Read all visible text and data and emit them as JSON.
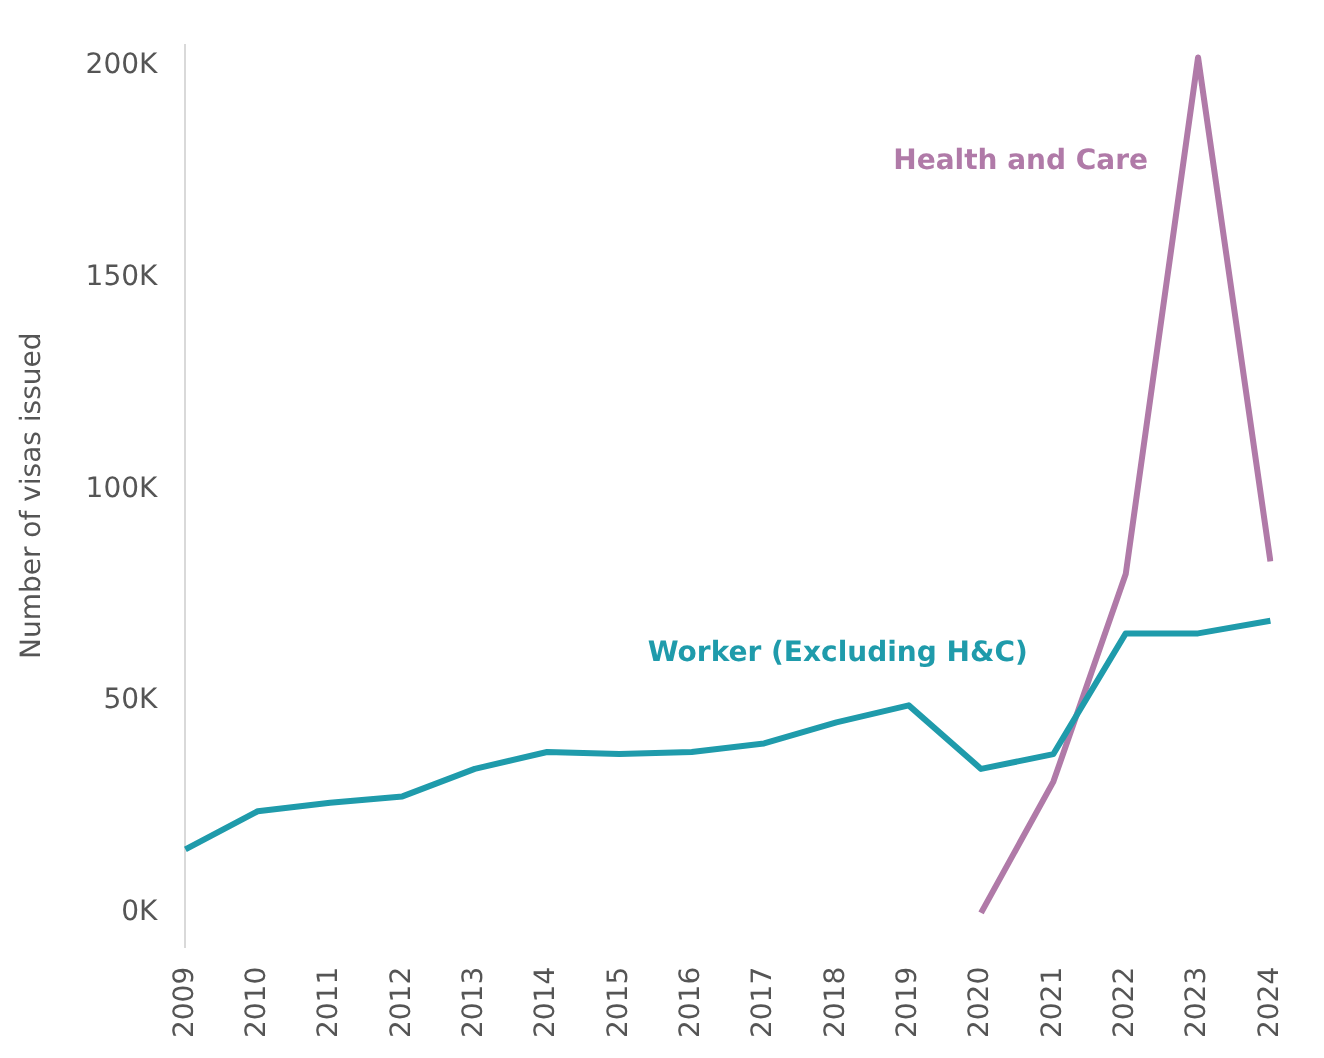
{
  "chart_data": {
    "type": "line",
    "ylabel": "Number of visas issued",
    "categories": [
      "2009",
      "2010",
      "2011",
      "2012",
      "2013",
      "2014",
      "2015",
      "2016",
      "2017",
      "2018",
      "2019",
      "2020",
      "2021",
      "2022",
      "2023",
      "2024"
    ],
    "series": [
      {
        "name": "Worker (Excluding H&C)",
        "color": "#1f9bab",
        "values": [
          15000,
          24000,
          26000,
          27500,
          34000,
          38000,
          37500,
          38000,
          40000,
          45000,
          49000,
          34000,
          37500,
          66000,
          66000,
          69000
        ]
      },
      {
        "name": "Health and Care",
        "color": "#b07aa8",
        "values": [
          null,
          null,
          null,
          null,
          null,
          null,
          null,
          null,
          null,
          null,
          null,
          0,
          31000,
          80000,
          202000,
          83000
        ]
      }
    ],
    "ylim": [
      -8000,
      205000
    ],
    "yticks": [
      {
        "value": 0,
        "label": "0K"
      },
      {
        "value": 50000,
        "label": "50K"
      },
      {
        "value": 100000,
        "label": "100K"
      },
      {
        "value": 150000,
        "label": "150K"
      },
      {
        "value": 200000,
        "label": "200K"
      }
    ],
    "grid": false,
    "legend": false,
    "marker": "none",
    "line_style": "solid"
  }
}
